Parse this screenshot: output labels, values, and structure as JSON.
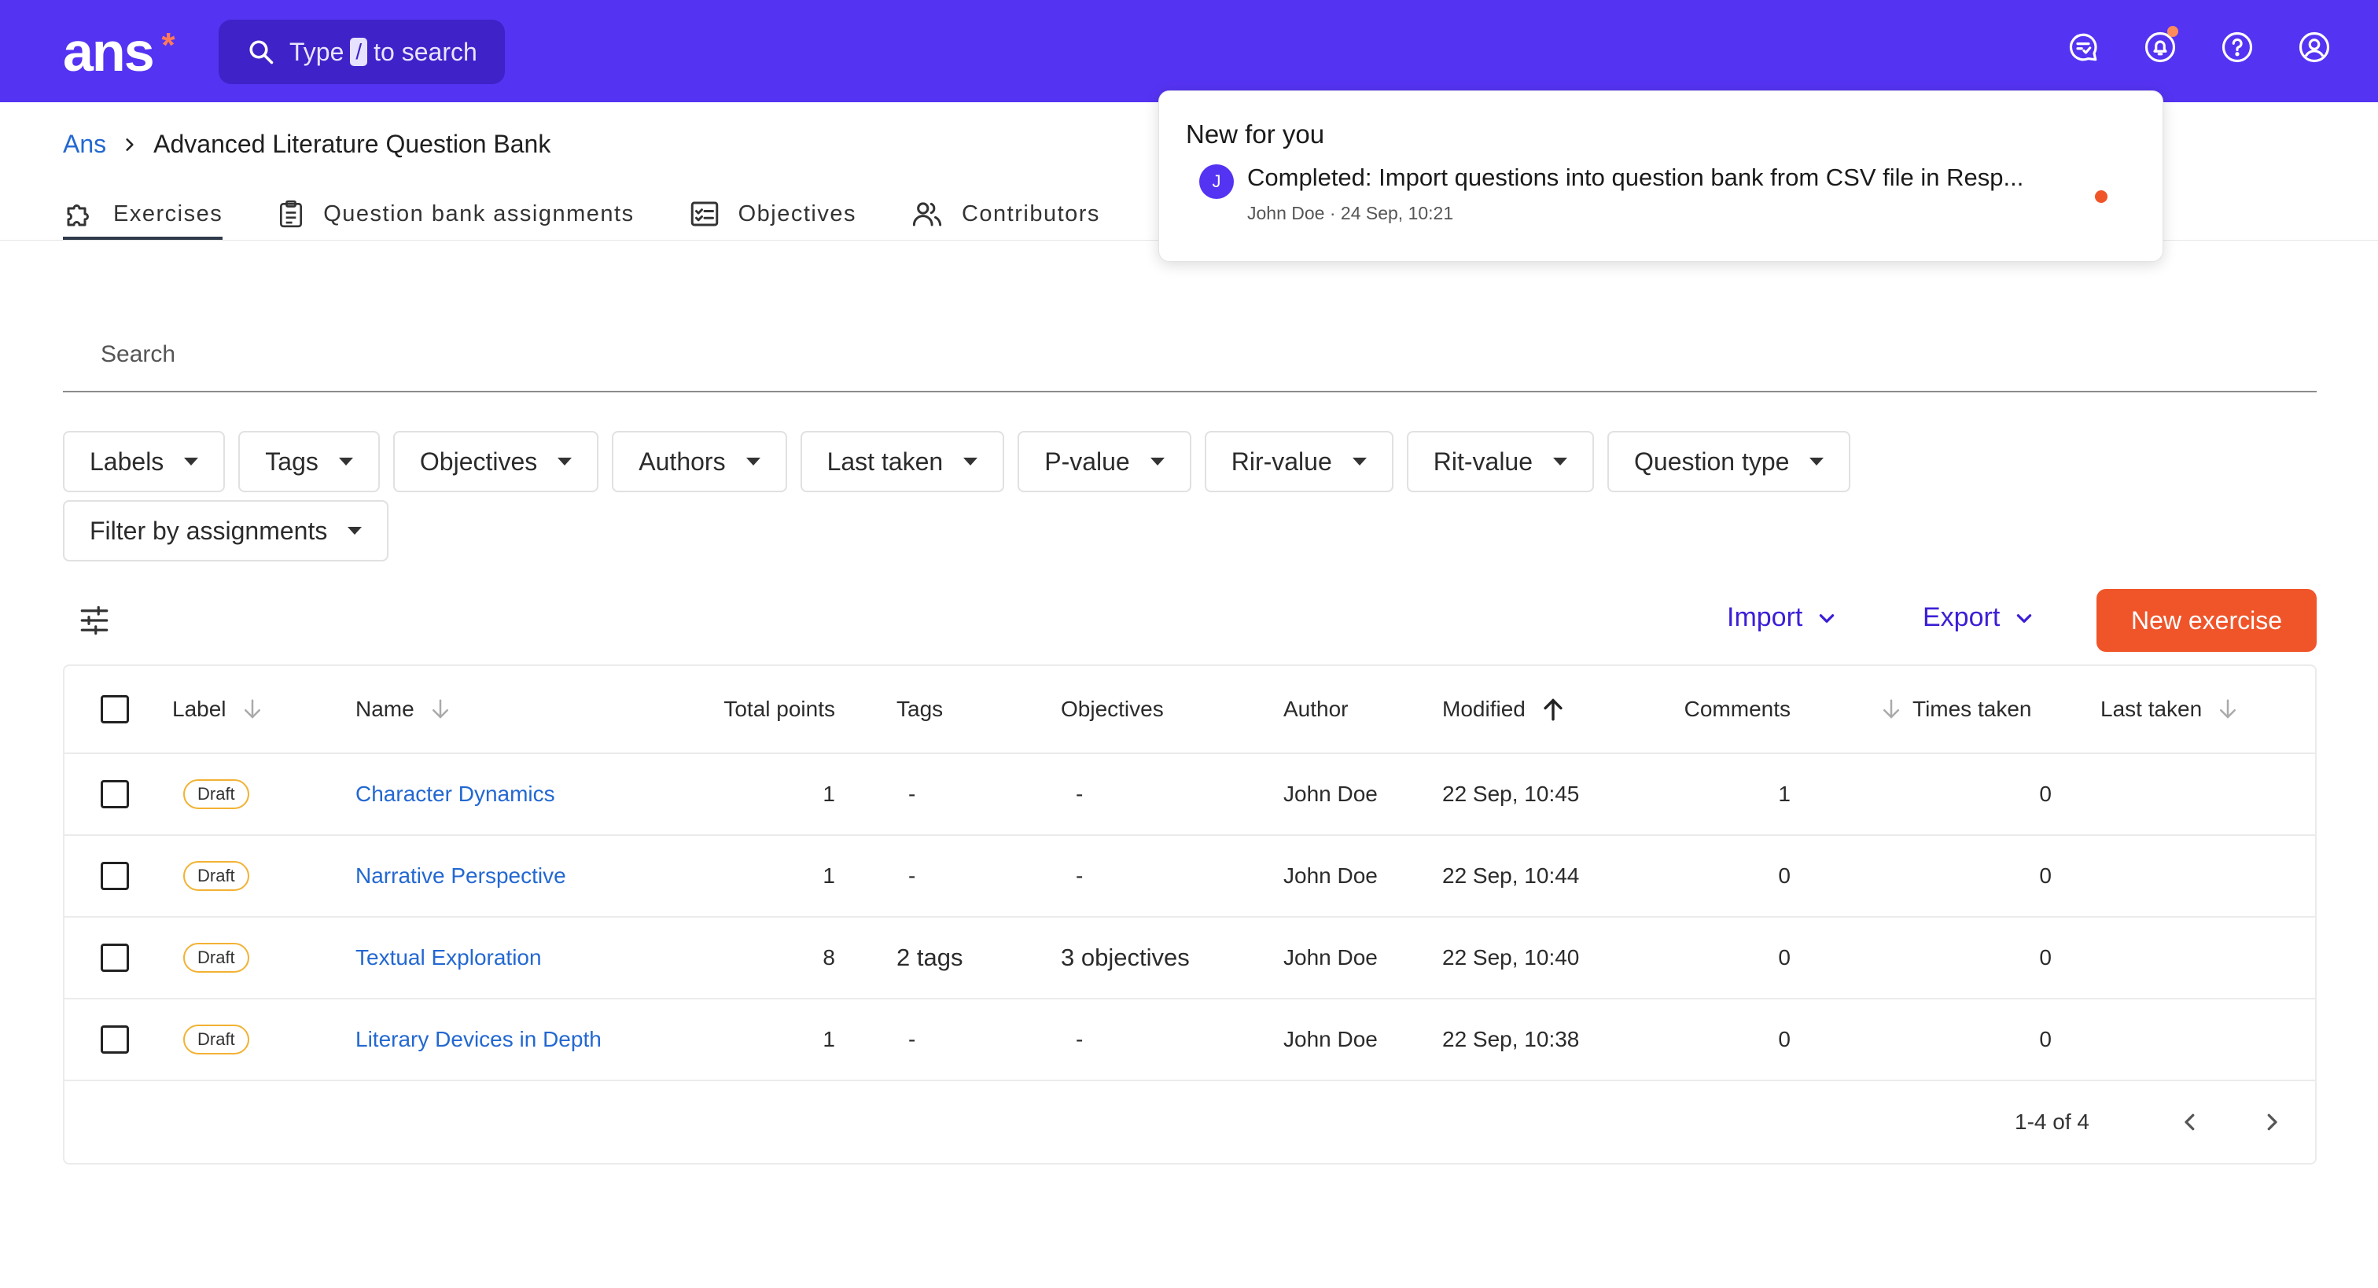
{
  "topbar": {
    "logo": "ans",
    "logo_mark": "*",
    "search_prefix": "Type",
    "search_key": "/",
    "search_suffix": "to search",
    "icons": [
      "chat-check-icon",
      "bell-icon",
      "help-icon",
      "user-icon"
    ]
  },
  "breadcrumb": {
    "root": "Ans",
    "separator": ">",
    "current": "Advanced Literature Question Bank"
  },
  "tabs": [
    {
      "label": "Exercises",
      "icon": "puzzle-icon",
      "active": true
    },
    {
      "label": "Question bank assignments",
      "icon": "clipboard-icon"
    },
    {
      "label": "Objectives",
      "icon": "checklist-icon"
    },
    {
      "label": "Contributors",
      "icon": "people-icon"
    }
  ],
  "notification": {
    "title": "New for you",
    "avatar": "J",
    "message": "Completed: Import questions into question bank from CSV file in Resp...",
    "meta": "John Doe · 24 Sep, 10:21"
  },
  "search": {
    "placeholder": "Search"
  },
  "filters": [
    "Labels",
    "Tags",
    "Objectives",
    "Authors",
    "Last taken",
    "P-value",
    "Rir-value",
    "Rit-value",
    "Question type",
    "Filter by assignments"
  ],
  "toolbar": {
    "import_label": "Import",
    "export_label": "Export",
    "new_label": "New exercise"
  },
  "table": {
    "headers": {
      "label": "Label",
      "name": "Name",
      "total_points": "Total points",
      "tags": "Tags",
      "objectives": "Objectives",
      "author": "Author",
      "modified": "Modified",
      "comments": "Comments",
      "times_taken": "Times taken",
      "last_taken": "Last taken"
    },
    "rows": [
      {
        "label": "Draft",
        "name": "Character Dynamics",
        "points": "1",
        "tags": "-",
        "objectives": "-",
        "author": "John Doe",
        "modified": "22 Sep, 10:45",
        "comments": "1",
        "times": "0",
        "last": ""
      },
      {
        "label": "Draft",
        "name": "Narrative Perspective",
        "points": "1",
        "tags": "-",
        "objectives": "-",
        "author": "John Doe",
        "modified": "22 Sep, 10:44",
        "comments": "0",
        "times": "0",
        "last": ""
      },
      {
        "label": "Draft",
        "name": "Textual Exploration",
        "points": "8",
        "tags": "2 tags",
        "objectives": "3 objectives",
        "author": "John Doe",
        "modified": "22 Sep, 10:40",
        "comments": "0",
        "times": "0",
        "last": ""
      },
      {
        "label": "Draft",
        "name": "Literary Devices in Depth",
        "points": "1",
        "tags": "-",
        "objectives": "-",
        "author": "John Doe",
        "modified": "22 Sep, 10:38",
        "comments": "0",
        "times": "0",
        "last": ""
      }
    ],
    "pagination": "1-4 of 4"
  },
  "colors": {
    "brand": "#5533f2",
    "accent": "#f0552a",
    "link": "#2368d1",
    "draft_badge": "#f2b233"
  }
}
